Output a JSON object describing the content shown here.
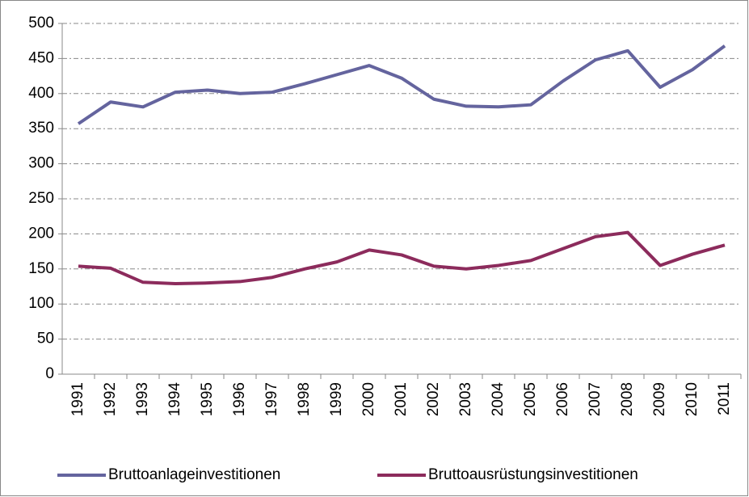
{
  "chart_data": {
    "type": "line",
    "categories": [
      "1991",
      "1992",
      "1993",
      "1994",
      "1995",
      "1996",
      "1997",
      "1998",
      "1999",
      "2000",
      "2001",
      "2002",
      "2003",
      "2004",
      "2005",
      "2006",
      "2007",
      "2008",
      "2009",
      "2010",
      "2011"
    ],
    "series": [
      {
        "name": "Bruttoanlageinvestitionen",
        "color": "#64649e",
        "values": [
          357,
          388,
          381,
          402,
          405,
          400,
          402,
          414,
          427,
          440,
          422,
          392,
          382,
          381,
          384,
          418,
          448,
          461,
          409,
          434,
          468
        ]
      },
      {
        "name": "Bruttoausrüstungsinvestitionen",
        "color": "#8c2b5c",
        "values": [
          154,
          151,
          131,
          129,
          130,
          132,
          138,
          150,
          160,
          177,
          170,
          154,
          150,
          155,
          162,
          179,
          196,
          202,
          155,
          171,
          184
        ]
      }
    ],
    "ylim": [
      0,
      500
    ],
    "yticks": [
      0,
      50,
      100,
      150,
      200,
      250,
      300,
      350,
      400,
      450,
      500
    ],
    "grid": true,
    "legend": "bottom"
  }
}
